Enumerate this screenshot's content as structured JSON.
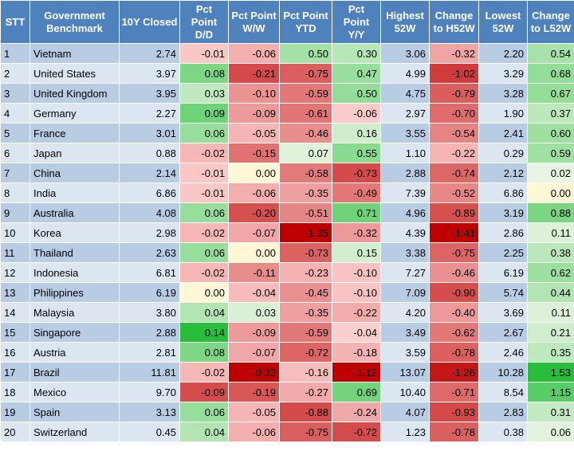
{
  "headers": [
    "STT",
    "Government Benchmark",
    "10Y Closed",
    "Pct Point D/D",
    "Pct Point W/W",
    "Pct Point YTD",
    "Pct Point Y/Y",
    "Highest 52W",
    "Change to H52W",
    "Lowest 52W",
    "Change to L52W"
  ],
  "colors": {
    "header_bg": "#4f81bd",
    "header_text": "#ffffff",
    "row_odd": "#b8cce4",
    "row_even": "#dce6f1",
    "positive_scale": "green",
    "negative_scale": "red"
  },
  "rows": [
    {
      "stt": "1",
      "name": "Vietnam",
      "closed": "2.74",
      "dd": "-0.01",
      "ww": "-0.06",
      "ytd": "0.50",
      "yy": "0.30",
      "h52": "3.06",
      "ch52": "-0.32",
      "l52": "2.20",
      "cl52": "0.54"
    },
    {
      "stt": "2",
      "name": "United States",
      "closed": "3.97",
      "dd": "0.08",
      "ww": "-0.21",
      "ytd": "-0.75",
      "yy": "0.47",
      "h52": "4.99",
      "ch52": "-1.02",
      "l52": "3.29",
      "cl52": "0.68"
    },
    {
      "stt": "3",
      "name": "United Kingdom",
      "closed": "3.95",
      "dd": "0.03",
      "ww": "-0.10",
      "ytd": "-0.59",
      "yy": "0.50",
      "h52": "4.75",
      "ch52": "-0.79",
      "l52": "3.28",
      "cl52": "0.67"
    },
    {
      "stt": "4",
      "name": "Germany",
      "closed": "2.27",
      "dd": "0.09",
      "ww": "-0.09",
      "ytd": "-0.61",
      "yy": "-0.06",
      "h52": "2.97",
      "ch52": "-0.70",
      "l52": "1.90",
      "cl52": "0.37"
    },
    {
      "stt": "5",
      "name": "France",
      "closed": "3.01",
      "dd": "0.06",
      "ww": "-0.05",
      "ytd": "-0.46",
      "yy": "0.16",
      "h52": "3.55",
      "ch52": "-0.54",
      "l52": "2.41",
      "cl52": "0.60"
    },
    {
      "stt": "6",
      "name": "Japan",
      "closed": "0.88",
      "dd": "-0.02",
      "ww": "-0.15",
      "ytd": "0.07",
      "yy": "0.55",
      "h52": "1.10",
      "ch52": "-0.22",
      "l52": "0.29",
      "cl52": "0.59"
    },
    {
      "stt": "7",
      "name": "China",
      "closed": "2.14",
      "dd": "-0.01",
      "ww": "0.00",
      "ytd": "-0.58",
      "yy": "-0.73",
      "h52": "2.88",
      "ch52": "-0.74",
      "l52": "2.12",
      "cl52": "0.02"
    },
    {
      "stt": "8",
      "name": "India",
      "closed": "6.86",
      "dd": "-0.01",
      "ww": "-0.06",
      "ytd": "-0.35",
      "yy": "-0.49",
      "h52": "7.39",
      "ch52": "-0.52",
      "l52": "6.86",
      "cl52": "0.00"
    },
    {
      "stt": "9",
      "name": "Australia",
      "closed": "4.08",
      "dd": "0.06",
      "ww": "-0.20",
      "ytd": "-0.51",
      "yy": "0.71",
      "h52": "4.96",
      "ch52": "-0.89",
      "l52": "3.19",
      "cl52": "0.88"
    },
    {
      "stt": "10",
      "name": "Korea",
      "closed": "2.98",
      "dd": "-0.02",
      "ww": "-0.07",
      "ytd": "-1.35",
      "yy": "-0.32",
      "h52": "4.39",
      "ch52": "-1.41",
      "l52": "2.86",
      "cl52": "0.11"
    },
    {
      "stt": "11",
      "name": "Thailand",
      "closed": "2.63",
      "dd": "0.06",
      "ww": "0.00",
      "ytd": "-0.73",
      "yy": "0.15",
      "h52": "3.38",
      "ch52": "-0.75",
      "l52": "2.25",
      "cl52": "0.38"
    },
    {
      "stt": "12",
      "name": "Indonesia",
      "closed": "6.81",
      "dd": "-0.02",
      "ww": "-0.11",
      "ytd": "-0.23",
      "yy": "-0.10",
      "h52": "7.27",
      "ch52": "-0.46",
      "l52": "6.19",
      "cl52": "0.62"
    },
    {
      "stt": "13",
      "name": "Philippines",
      "closed": "6.19",
      "dd": "0.00",
      "ww": "-0.04",
      "ytd": "-0.45",
      "yy": "-0.10",
      "h52": "7.09",
      "ch52": "-0.90",
      "l52": "5.74",
      "cl52": "0.44"
    },
    {
      "stt": "14",
      "name": "Malaysia",
      "closed": "3.80",
      "dd": "0.04",
      "ww": "0.03",
      "ytd": "-0.35",
      "yy": "-0.22",
      "h52": "4.20",
      "ch52": "-0.40",
      "l52": "3.69",
      "cl52": "0.11"
    },
    {
      "stt": "15",
      "name": "Singapore",
      "closed": "2.88",
      "dd": "0.14",
      "ww": "-0.09",
      "ytd": "-0.59",
      "yy": "-0.04",
      "h52": "3.49",
      "ch52": "-0.62",
      "l52": "2.67",
      "cl52": "0.21"
    },
    {
      "stt": "16",
      "name": "Austria",
      "closed": "2.81",
      "dd": "0.08",
      "ww": "-0.07",
      "ytd": "-0.72",
      "yy": "-0.18",
      "h52": "3.59",
      "ch52": "-0.78",
      "l52": "2.46",
      "cl52": "0.35"
    },
    {
      "stt": "17",
      "name": "Brazil",
      "closed": "11.81",
      "dd": "-0.02",
      "ww": "-0.32",
      "ytd": "-0.16",
      "yy": "-1.12",
      "h52": "13.07",
      "ch52": "-1.26",
      "l52": "10.28",
      "cl52": "1.53"
    },
    {
      "stt": "18",
      "name": "Mexico",
      "closed": "9.70",
      "dd": "-0.09",
      "ww": "-0.19",
      "ytd": "-0.27",
      "yy": "0.69",
      "h52": "10.40",
      "ch52": "-0.71",
      "l52": "8.54",
      "cl52": "1.15"
    },
    {
      "stt": "19",
      "name": "Spain",
      "closed": "3.13",
      "dd": "0.06",
      "ww": "-0.05",
      "ytd": "-0.88",
      "yy": "-0.24",
      "h52": "4.07",
      "ch52": "-0.93",
      "l52": "2.83",
      "cl52": "0.31"
    },
    {
      "stt": "20",
      "name": "Switzerland",
      "closed": "0.45",
      "dd": "0.04",
      "ww": "-0.06",
      "ytd": "-0.75",
      "yy": "-0.72",
      "h52": "1.23",
      "ch52": "-0.78",
      "l52": "0.38",
      "cl52": "0.06"
    }
  ]
}
